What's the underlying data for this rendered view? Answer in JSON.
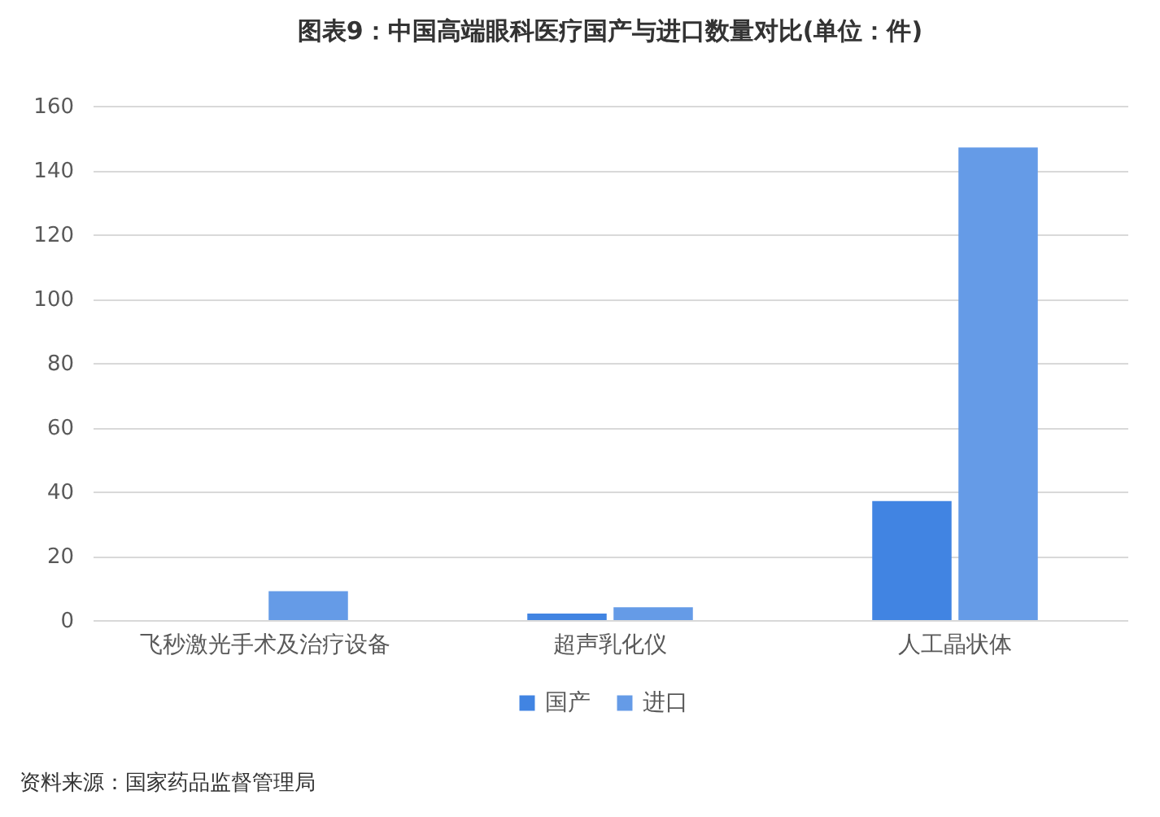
{
  "chart_data": {
    "type": "bar",
    "title": "图表9：中国高端眼科医疗国产与进口数量对比(单位：件)",
    "categories": [
      "飞秒激光手术及治疗设备",
      "超声乳化仪",
      "人工晶状体"
    ],
    "series": [
      {
        "name": "国产",
        "color": "#4184e2",
        "values": [
          0,
          2,
          37
        ]
      },
      {
        "name": "进口",
        "color": "#659be7",
        "values": [
          9,
          4,
          147
        ]
      }
    ],
    "ylim": [
      0,
      160
    ],
    "yticks": [
      0,
      20,
      40,
      60,
      80,
      100,
      120,
      140,
      160
    ],
    "grid": "y",
    "legend": "bottom",
    "annotations": [
      "资料来源：国家药品监督管理局"
    ]
  }
}
